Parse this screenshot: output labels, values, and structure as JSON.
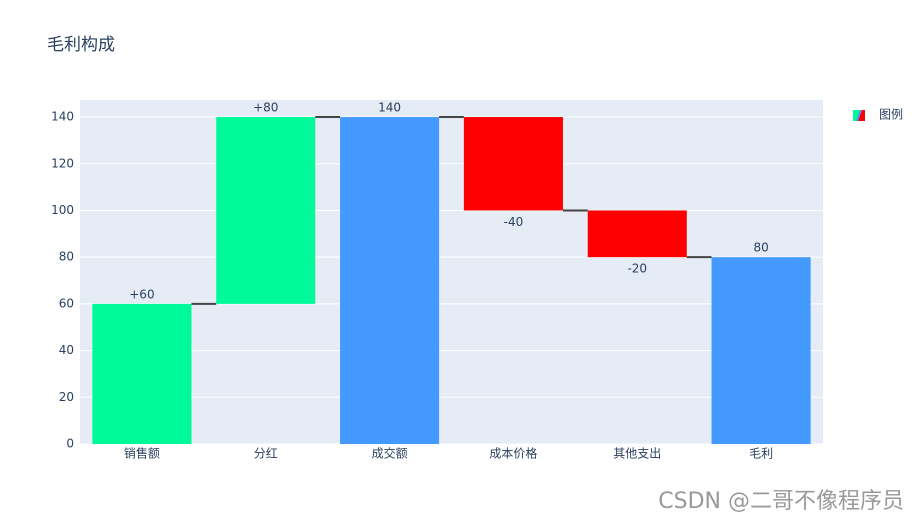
{
  "chart_data": {
    "type": "waterfall",
    "title": "毛利构成",
    "categories": [
      "销售额",
      "分红",
      "成交额",
      "成本价格",
      "其他支出",
      "毛利"
    ],
    "series": [
      {
        "name": "图例",
        "measure": [
          "relative",
          "relative",
          "total",
          "relative",
          "relative",
          "total"
        ],
        "values": [
          60,
          80,
          140,
          -40,
          -20,
          80
        ],
        "value_labels": [
          "+60",
          "+80",
          "140",
          "-40",
          "-20",
          "80"
        ]
      }
    ],
    "increasing_color": "#00FA9A",
    "decreasing_color": "#FF0000",
    "total_color": "#4499FF",
    "ylim": [
      0,
      147.3
    ],
    "yticks": [
      0,
      20,
      40,
      60,
      80,
      100,
      120,
      140
    ],
    "grid": true,
    "legend_position": "top-right",
    "watermark": "CSDN @二哥不像程序员"
  }
}
